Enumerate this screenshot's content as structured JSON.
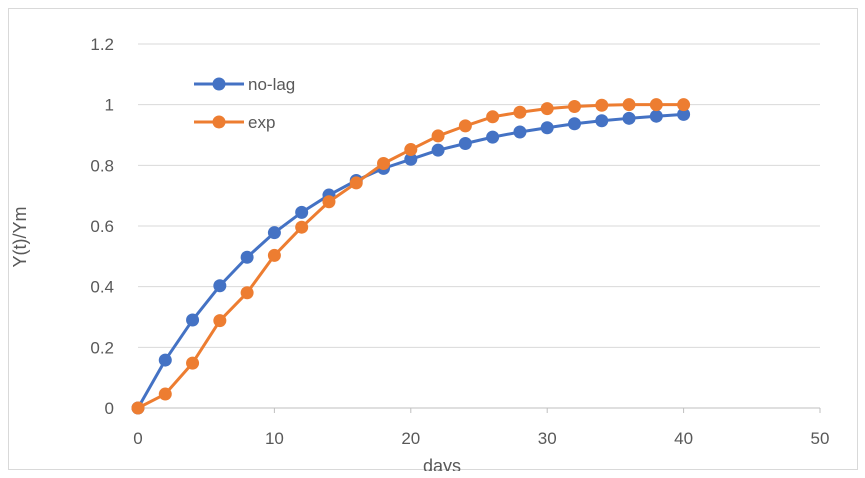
{
  "chart_data": {
    "type": "line",
    "title": "",
    "xlabel": "days",
    "ylabel": "Y(t)/Ym",
    "xlim": [
      0,
      50
    ],
    "ylim": [
      0,
      1.2
    ],
    "xticks": [
      0,
      10,
      20,
      30,
      40,
      50
    ],
    "yticks": [
      0,
      0.2,
      0.4,
      0.6,
      0.8,
      1,
      1.2
    ],
    "xtick_labels": [
      "0",
      "10",
      "20",
      "30",
      "40",
      "50"
    ],
    "ytick_labels": [
      "0",
      "0.2",
      "0.4",
      "0.6",
      "0.8",
      "1",
      "1.2"
    ],
    "grid": "horizontal",
    "legend_position": "top-left",
    "x": [
      0,
      2,
      4,
      6,
      8,
      10,
      12,
      14,
      16,
      18,
      20,
      22,
      24,
      26,
      28,
      30,
      32,
      34,
      36,
      38,
      40
    ],
    "series": [
      {
        "name": "no-lag",
        "color": "#4472C4",
        "values": [
          0,
          0.158,
          0.29,
          0.403,
          0.497,
          0.578,
          0.645,
          0.702,
          0.75,
          0.79,
          0.82,
          0.85,
          0.872,
          0.893,
          0.91,
          0.924,
          0.937,
          0.947,
          0.955,
          0.962,
          0.968
        ]
      },
      {
        "name": "exp",
        "color": "#ED7D31",
        "values": [
          0,
          0.046,
          0.148,
          0.288,
          0.38,
          0.503,
          0.596,
          0.68,
          0.742,
          0.806,
          0.852,
          0.897,
          0.93,
          0.96,
          0.975,
          0.987,
          0.994,
          0.998,
          1.0,
          1.0,
          1.0
        ]
      }
    ]
  }
}
